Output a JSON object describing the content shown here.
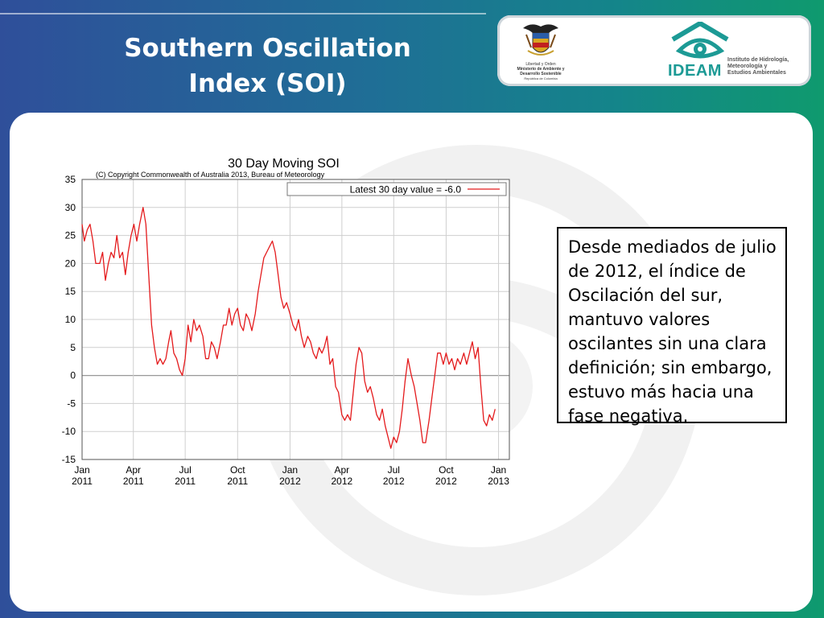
{
  "slide": {
    "title_line1": "Southern Oscillation",
    "title_line2": "Index (SOI)",
    "body_text": "Desde mediados de julio de 2012, el índice de Oscilación del sur, mantuvo valores oscilantes sin una clara definición; sin embargo, estuvo más hacia una fase negativa."
  },
  "logos": {
    "crest_caption": [
      "Libertad y Orden",
      "Ministerio de Ambiente y",
      "Desarrollo Sostenible",
      "República de Colombia"
    ],
    "ideam_word": "IDEAM",
    "ideam_subtitle": [
      "Instituto de Hidrología,",
      "Meteorología y",
      "Estudios Ambientales"
    ]
  },
  "colors": {
    "series": "#e41a1c",
    "ideam": "#1c9a95",
    "grid": "#cfcfcf"
  },
  "chart_data": {
    "type": "line",
    "title": "30 Day Moving SOI",
    "subtitle": "(C) Copyright Commonwealth of Australia 2013, Bureau of Meteorology",
    "xlabel": "",
    "ylabel": "",
    "ylim": [
      -15,
      35
    ],
    "yticks": [
      35,
      30,
      25,
      20,
      15,
      10,
      5,
      0,
      -5,
      -10,
      -15
    ],
    "xlim": [
      "2011-01-01",
      "2013-01-20"
    ],
    "xticks": [
      {
        "date": "2011-01-01",
        "label": [
          "Jan",
          "2011"
        ]
      },
      {
        "date": "2011-04-01",
        "label": [
          "Apr",
          "2011"
        ]
      },
      {
        "date": "2011-07-01",
        "label": [
          "Jul",
          "2011"
        ]
      },
      {
        "date": "2011-10-01",
        "label": [
          "Oct",
          "2011"
        ]
      },
      {
        "date": "2012-01-01",
        "label": [
          "Jan",
          "2012"
        ]
      },
      {
        "date": "2012-04-01",
        "label": [
          "Apr",
          "2012"
        ]
      },
      {
        "date": "2012-07-01",
        "label": [
          "Jul",
          "2012"
        ]
      },
      {
        "date": "2012-10-01",
        "label": [
          "Oct",
          "2012"
        ]
      },
      {
        "date": "2013-01-01",
        "label": [
          "Jan",
          "2013"
        ]
      }
    ],
    "grid": true,
    "legend": {
      "position": "top-right"
    },
    "series": [
      {
        "name": "Latest 30 day value = -6.0",
        "points": [
          [
            "2011-01-01",
            27
          ],
          [
            "2011-01-05",
            24
          ],
          [
            "2011-01-10",
            26
          ],
          [
            "2011-01-15",
            27
          ],
          [
            "2011-01-20",
            24
          ],
          [
            "2011-01-25",
            20
          ],
          [
            "2011-02-01",
            20
          ],
          [
            "2011-02-06",
            22
          ],
          [
            "2011-02-11",
            17
          ],
          [
            "2011-02-16",
            20
          ],
          [
            "2011-02-21",
            22
          ],
          [
            "2011-02-26",
            21
          ],
          [
            "2011-03-03",
            25
          ],
          [
            "2011-03-08",
            21
          ],
          [
            "2011-03-13",
            22
          ],
          [
            "2011-03-18",
            18
          ],
          [
            "2011-03-23",
            22
          ],
          [
            "2011-03-28",
            25
          ],
          [
            "2011-04-02",
            27
          ],
          [
            "2011-04-07",
            24
          ],
          [
            "2011-04-12",
            27
          ],
          [
            "2011-04-18",
            30
          ],
          [
            "2011-04-23",
            27
          ],
          [
            "2011-04-28",
            18
          ],
          [
            "2011-05-03",
            9
          ],
          [
            "2011-05-08",
            5
          ],
          [
            "2011-05-13",
            2
          ],
          [
            "2011-05-18",
            3
          ],
          [
            "2011-05-23",
            2
          ],
          [
            "2011-05-28",
            3
          ],
          [
            "2011-06-02",
            6
          ],
          [
            "2011-06-06",
            8
          ],
          [
            "2011-06-11",
            4
          ],
          [
            "2011-06-16",
            3
          ],
          [
            "2011-06-21",
            1
          ],
          [
            "2011-06-26",
            0
          ],
          [
            "2011-07-01",
            3
          ],
          [
            "2011-07-06",
            9
          ],
          [
            "2011-07-11",
            6
          ],
          [
            "2011-07-16",
            10
          ],
          [
            "2011-07-21",
            8
          ],
          [
            "2011-07-26",
            9
          ],
          [
            "2011-08-01",
            7
          ],
          [
            "2011-08-06",
            3
          ],
          [
            "2011-08-11",
            3
          ],
          [
            "2011-08-16",
            6
          ],
          [
            "2011-08-21",
            5
          ],
          [
            "2011-08-26",
            3
          ],
          [
            "2011-09-01",
            6
          ],
          [
            "2011-09-06",
            9
          ],
          [
            "2011-09-11",
            9
          ],
          [
            "2011-09-16",
            12
          ],
          [
            "2011-09-21",
            9
          ],
          [
            "2011-09-26",
            11
          ],
          [
            "2011-10-01",
            12
          ],
          [
            "2011-10-06",
            9
          ],
          [
            "2011-10-11",
            8
          ],
          [
            "2011-10-16",
            11
          ],
          [
            "2011-10-21",
            10
          ],
          [
            "2011-10-26",
            8
          ],
          [
            "2011-11-01",
            11
          ],
          [
            "2011-11-06",
            15
          ],
          [
            "2011-11-11",
            18
          ],
          [
            "2011-11-16",
            21
          ],
          [
            "2011-11-21",
            22
          ],
          [
            "2011-11-26",
            23
          ],
          [
            "2011-12-01",
            24
          ],
          [
            "2011-12-06",
            22
          ],
          [
            "2011-12-11",
            18
          ],
          [
            "2011-12-16",
            14
          ],
          [
            "2011-12-21",
            12
          ],
          [
            "2011-12-26",
            13
          ],
          [
            "2012-01-01",
            11
          ],
          [
            "2012-01-06",
            9
          ],
          [
            "2012-01-11",
            8
          ],
          [
            "2012-01-16",
            10
          ],
          [
            "2012-01-21",
            7
          ],
          [
            "2012-01-26",
            5
          ],
          [
            "2012-02-01",
            7
          ],
          [
            "2012-02-06",
            6
          ],
          [
            "2012-02-11",
            4
          ],
          [
            "2012-02-16",
            3
          ],
          [
            "2012-02-21",
            5
          ],
          [
            "2012-02-26",
            4
          ],
          [
            "2012-03-01",
            5
          ],
          [
            "2012-03-06",
            7
          ],
          [
            "2012-03-11",
            2
          ],
          [
            "2012-03-16",
            3
          ],
          [
            "2012-03-21",
            -2
          ],
          [
            "2012-03-26",
            -3
          ],
          [
            "2012-04-01",
            -7
          ],
          [
            "2012-04-06",
            -8
          ],
          [
            "2012-04-11",
            -7
          ],
          [
            "2012-04-16",
            -8
          ],
          [
            "2012-04-21",
            -3
          ],
          [
            "2012-04-26",
            2
          ],
          [
            "2012-05-01",
            5
          ],
          [
            "2012-05-06",
            4
          ],
          [
            "2012-05-11",
            -1
          ],
          [
            "2012-05-16",
            -3
          ],
          [
            "2012-05-21",
            -2
          ],
          [
            "2012-05-26",
            -4
          ],
          [
            "2012-06-01",
            -7
          ],
          [
            "2012-06-06",
            -8
          ],
          [
            "2012-06-11",
            -6
          ],
          [
            "2012-06-16",
            -9
          ],
          [
            "2012-06-21",
            -11
          ],
          [
            "2012-06-26",
            -13
          ],
          [
            "2012-07-01",
            -11
          ],
          [
            "2012-07-06",
            -12
          ],
          [
            "2012-07-11",
            -10
          ],
          [
            "2012-07-16",
            -6
          ],
          [
            "2012-07-21",
            -1
          ],
          [
            "2012-07-26",
            3
          ],
          [
            "2012-08-01",
            0
          ],
          [
            "2012-08-06",
            -2
          ],
          [
            "2012-08-11",
            -5
          ],
          [
            "2012-08-16",
            -8
          ],
          [
            "2012-08-21",
            -12
          ],
          [
            "2012-08-26",
            -12
          ],
          [
            "2012-09-01",
            -8
          ],
          [
            "2012-09-06",
            -4
          ],
          [
            "2012-09-11",
            0
          ],
          [
            "2012-09-16",
            4
          ],
          [
            "2012-09-21",
            4
          ],
          [
            "2012-09-26",
            2
          ],
          [
            "2012-10-01",
            4
          ],
          [
            "2012-10-06",
            2
          ],
          [
            "2012-10-11",
            3
          ],
          [
            "2012-10-16",
            1
          ],
          [
            "2012-10-21",
            3
          ],
          [
            "2012-10-26",
            2
          ],
          [
            "2012-11-01",
            4
          ],
          [
            "2012-11-06",
            2
          ],
          [
            "2012-11-11",
            4
          ],
          [
            "2012-11-16",
            6
          ],
          [
            "2012-11-21",
            3
          ],
          [
            "2012-11-26",
            5
          ],
          [
            "2012-12-01",
            -2
          ],
          [
            "2012-12-06",
            -8
          ],
          [
            "2012-12-11",
            -9
          ],
          [
            "2012-12-16",
            -7
          ],
          [
            "2012-12-21",
            -8
          ],
          [
            "2012-12-26",
            -6
          ]
        ]
      }
    ]
  }
}
